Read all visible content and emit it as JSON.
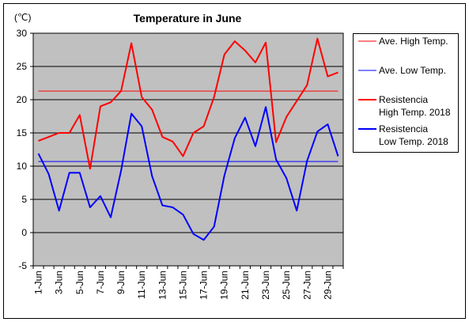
{
  "chart_data": {
    "type": "line",
    "title": "Temperature in June",
    "unit_label": "(℃)",
    "ylim": [
      -5,
      30
    ],
    "yticks": [
      -5,
      0,
      5,
      10,
      15,
      20,
      25,
      30
    ],
    "x": [
      1,
      2,
      3,
      4,
      5,
      6,
      7,
      8,
      9,
      10,
      11,
      12,
      13,
      14,
      15,
      16,
      17,
      18,
      19,
      20,
      21,
      22,
      23,
      24,
      25,
      26,
      27,
      28,
      29,
      30
    ],
    "xtick_labels": [
      "1-Jun",
      "3-Jun",
      "5-Jun",
      "7-Jun",
      "9-Jun",
      "11-Jun",
      "13-Jun",
      "15-Jun",
      "17-Jun",
      "19-Jun",
      "21-Jun",
      "23-Jun",
      "25-Jun",
      "27-Jun",
      "29-Jun"
    ],
    "xtick_positions": [
      1,
      3,
      5,
      7,
      9,
      11,
      13,
      15,
      17,
      19,
      21,
      23,
      25,
      27,
      29
    ],
    "grid": true,
    "background": "#c0c0c0",
    "legend_placement": "right",
    "series": [
      {
        "name": "Ave. High Temp.",
        "color": "#ff0000",
        "width": 1,
        "values": [
          21.3,
          21.3,
          21.3,
          21.3,
          21.3,
          21.3,
          21.3,
          21.3,
          21.3,
          21.3,
          21.3,
          21.3,
          21.3,
          21.3,
          21.3,
          21.3,
          21.3,
          21.3,
          21.3,
          21.3,
          21.3,
          21.3,
          21.3,
          21.3,
          21.3,
          21.3,
          21.3,
          21.3,
          21.3,
          21.3
        ]
      },
      {
        "name": "Ave. Low Temp.",
        "color": "#0000ff",
        "width": 1,
        "values": [
          10.7,
          10.7,
          10.7,
          10.7,
          10.7,
          10.7,
          10.7,
          10.7,
          10.7,
          10.7,
          10.7,
          10.7,
          10.7,
          10.7,
          10.7,
          10.7,
          10.7,
          10.7,
          10.7,
          10.7,
          10.7,
          10.7,
          10.7,
          10.7,
          10.7,
          10.7,
          10.7,
          10.7,
          10.7,
          10.7
        ]
      },
      {
        "name": "Resistencia High Temp. 2018",
        "legend_lines": [
          "Resistencia",
          "High Temp. 2018"
        ],
        "color": "#ff0000",
        "width": 2,
        "values": [
          13.8,
          14.4,
          15.0,
          15.0,
          17.7,
          9.6,
          19.0,
          19.6,
          21.3,
          28.5,
          20.4,
          18.5,
          14.4,
          13.7,
          11.5,
          15.0,
          16.0,
          20.4,
          26.8,
          28.8,
          27.4,
          25.6,
          28.6,
          13.6,
          17.4,
          19.8,
          22.2,
          29.2,
          23.5,
          24.1
        ]
      },
      {
        "name": "Resistencia Low Temp. 2018",
        "legend_lines": [
          "Resistencia",
          "Low Temp. 2018"
        ],
        "color": "#0000ff",
        "width": 2,
        "values": [
          11.9,
          8.8,
          3.3,
          9.0,
          9.0,
          3.8,
          5.5,
          2.3,
          9.3,
          17.9,
          16.0,
          8.5,
          4.1,
          3.8,
          2.7,
          -0.2,
          -1.1,
          0.9,
          8.6,
          14.2,
          17.3,
          13.0,
          18.9,
          11.0,
          8.2,
          3.3,
          10.8,
          15.2,
          16.3,
          11.5
        ]
      }
    ]
  }
}
